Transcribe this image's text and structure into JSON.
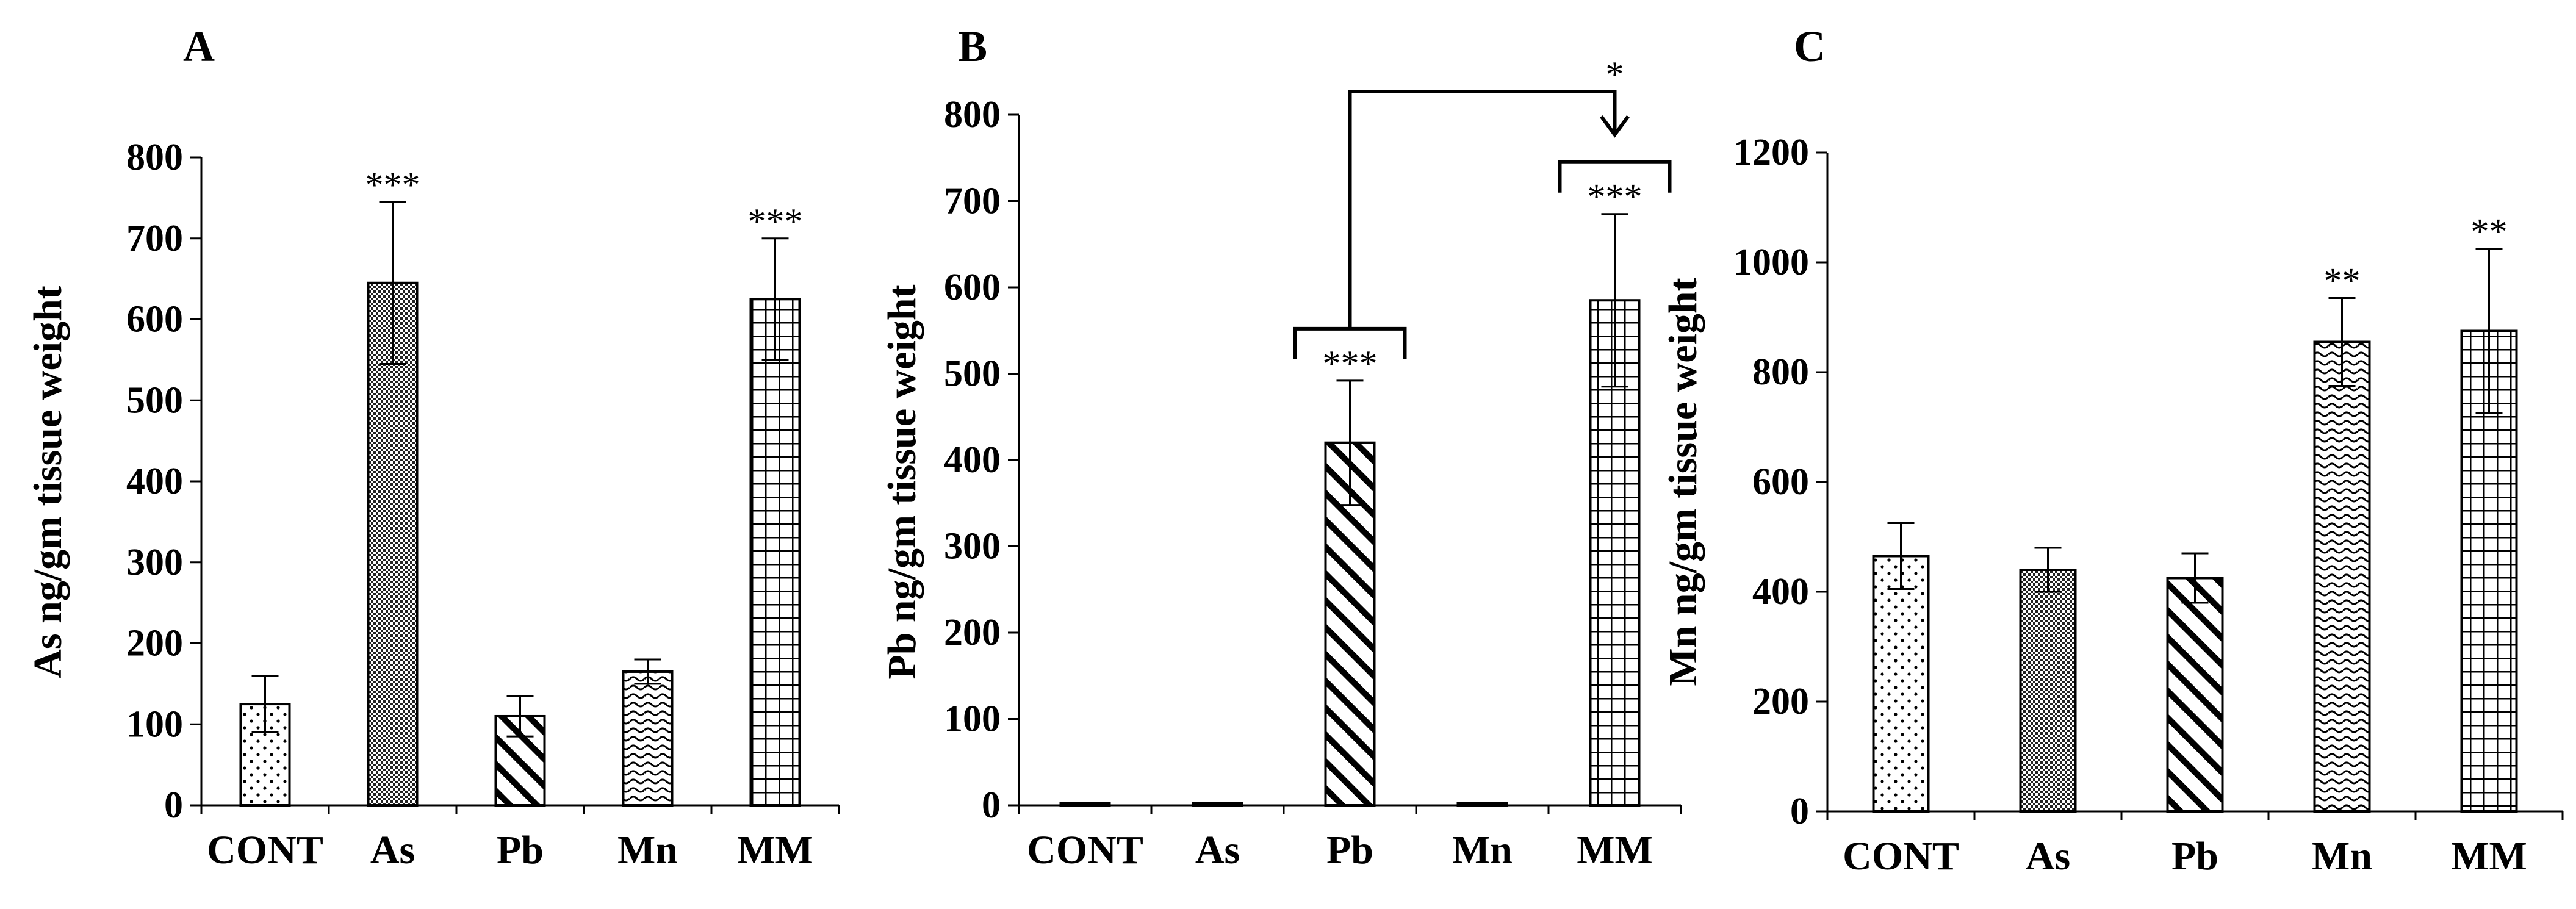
{
  "chart_data": [
    {
      "type": "bar",
      "panel": "A",
      "ylabel": "As ng/gm tissue weight",
      "ylim": [
        0,
        800
      ],
      "yticks": [
        "0",
        "100",
        "200",
        "300",
        "400",
        "500",
        "600",
        "700",
        "800"
      ],
      "categories": [
        "CONT",
        "As",
        "Pb",
        "Mn",
        "MM"
      ],
      "values": [
        125,
        645,
        110,
        165,
        625
      ],
      "errors": [
        35,
        100,
        25,
        15,
        75
      ],
      "significance": [
        "",
        "***",
        "",
        "",
        "***"
      ],
      "patterns": [
        "dots",
        "cross",
        "diag",
        "wave",
        "grid"
      ],
      "grid": false
    },
    {
      "type": "bar",
      "panel": "B",
      "ylabel": "Pb ng/gm tissue weight",
      "ylim": [
        0,
        800
      ],
      "yticks": [
        "0",
        "100",
        "200",
        "300",
        "400",
        "500",
        "600",
        "700",
        "800"
      ],
      "categories": [
        "CONT",
        "As",
        "Pb",
        "Mn",
        "MM"
      ],
      "values": [
        0,
        2,
        420,
        2,
        585
      ],
      "errors": [
        0,
        0,
        72,
        0,
        100
      ],
      "significance": [
        "",
        "",
        "***",
        "",
        "***"
      ],
      "patterns": [
        "dots",
        "cross",
        "diag",
        "wave",
        "grid"
      ],
      "comparison": {
        "from": "Pb",
        "to": "MM",
        "label": "*"
      },
      "grid": false
    },
    {
      "type": "bar",
      "panel": "C",
      "ylabel": "Mn ng/gm tissue weight",
      "ylim": [
        0,
        1200
      ],
      "yticks": [
        "0",
        "200",
        "400",
        "600",
        "800",
        "1000",
        "1200"
      ],
      "categories": [
        "CONT",
        "As",
        "Pb",
        "Mn",
        "MM"
      ],
      "values": [
        465,
        440,
        425,
        855,
        875
      ],
      "errors": [
        60,
        40,
        45,
        80,
        150
      ],
      "significance": [
        "",
        "",
        "",
        "**",
        "**"
      ],
      "patterns": [
        "dots",
        "cross",
        "diag",
        "wave",
        "grid"
      ],
      "grid": false
    }
  ]
}
